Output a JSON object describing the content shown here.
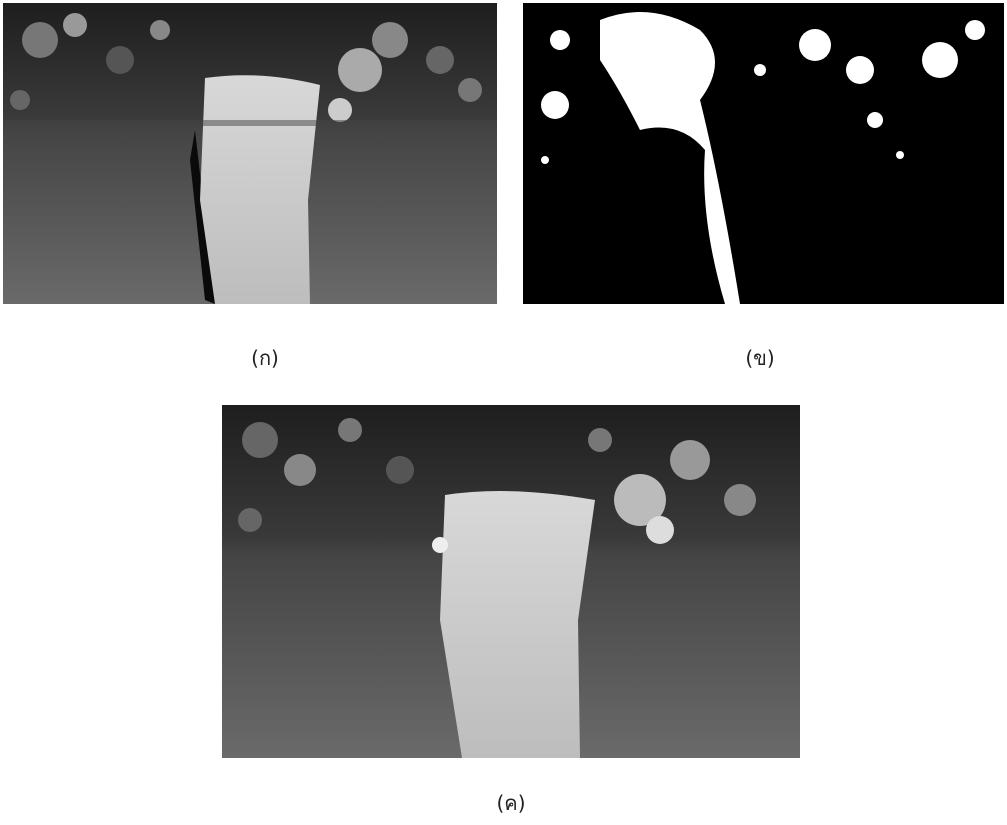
{
  "figure": {
    "captions": [
      "(ก)",
      "(ข)",
      "(ค)"
    ]
  }
}
